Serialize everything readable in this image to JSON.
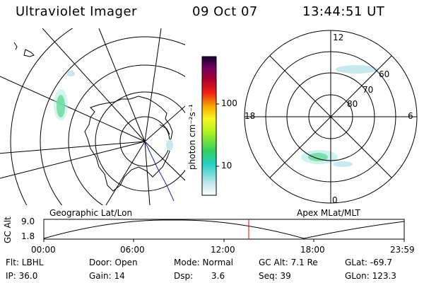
{
  "header": {
    "title": "Ultraviolet Imager",
    "date": "09 Oct 07",
    "time": "13:44:51 UT"
  },
  "colorbar": {
    "label": "photon cm⁻²s⁻¹",
    "ticks": [
      "100",
      "10"
    ]
  },
  "polar_plot": {
    "labels": [
      "12",
      "18",
      "6",
      "0",
      "80",
      "70",
      "60"
    ]
  },
  "timeline": {
    "left_label": "Geographic Lat/Lon",
    "right_label": "Apex MLat/MLT",
    "axis_label": "GC Alt",
    "y_ticks": [
      "9.0",
      "1.8"
    ],
    "x_ticks": [
      "00:00",
      "06:00",
      "12:00",
      "18:00",
      "23:59"
    ]
  },
  "info": {
    "flt": "Flt: LBHL",
    "ip": "IP: 36.0",
    "door": "Door: Open",
    "gain": "Gain: 14",
    "mode": "Mode: Normal",
    "dsp_label": "Dsp:",
    "dsp_value": "3.6",
    "gc_alt": "GC Alt: 7.1 Re",
    "seq": "Seq: 39",
    "glat": "GLat: -69.7",
    "glon": "GLon: 123.3"
  }
}
